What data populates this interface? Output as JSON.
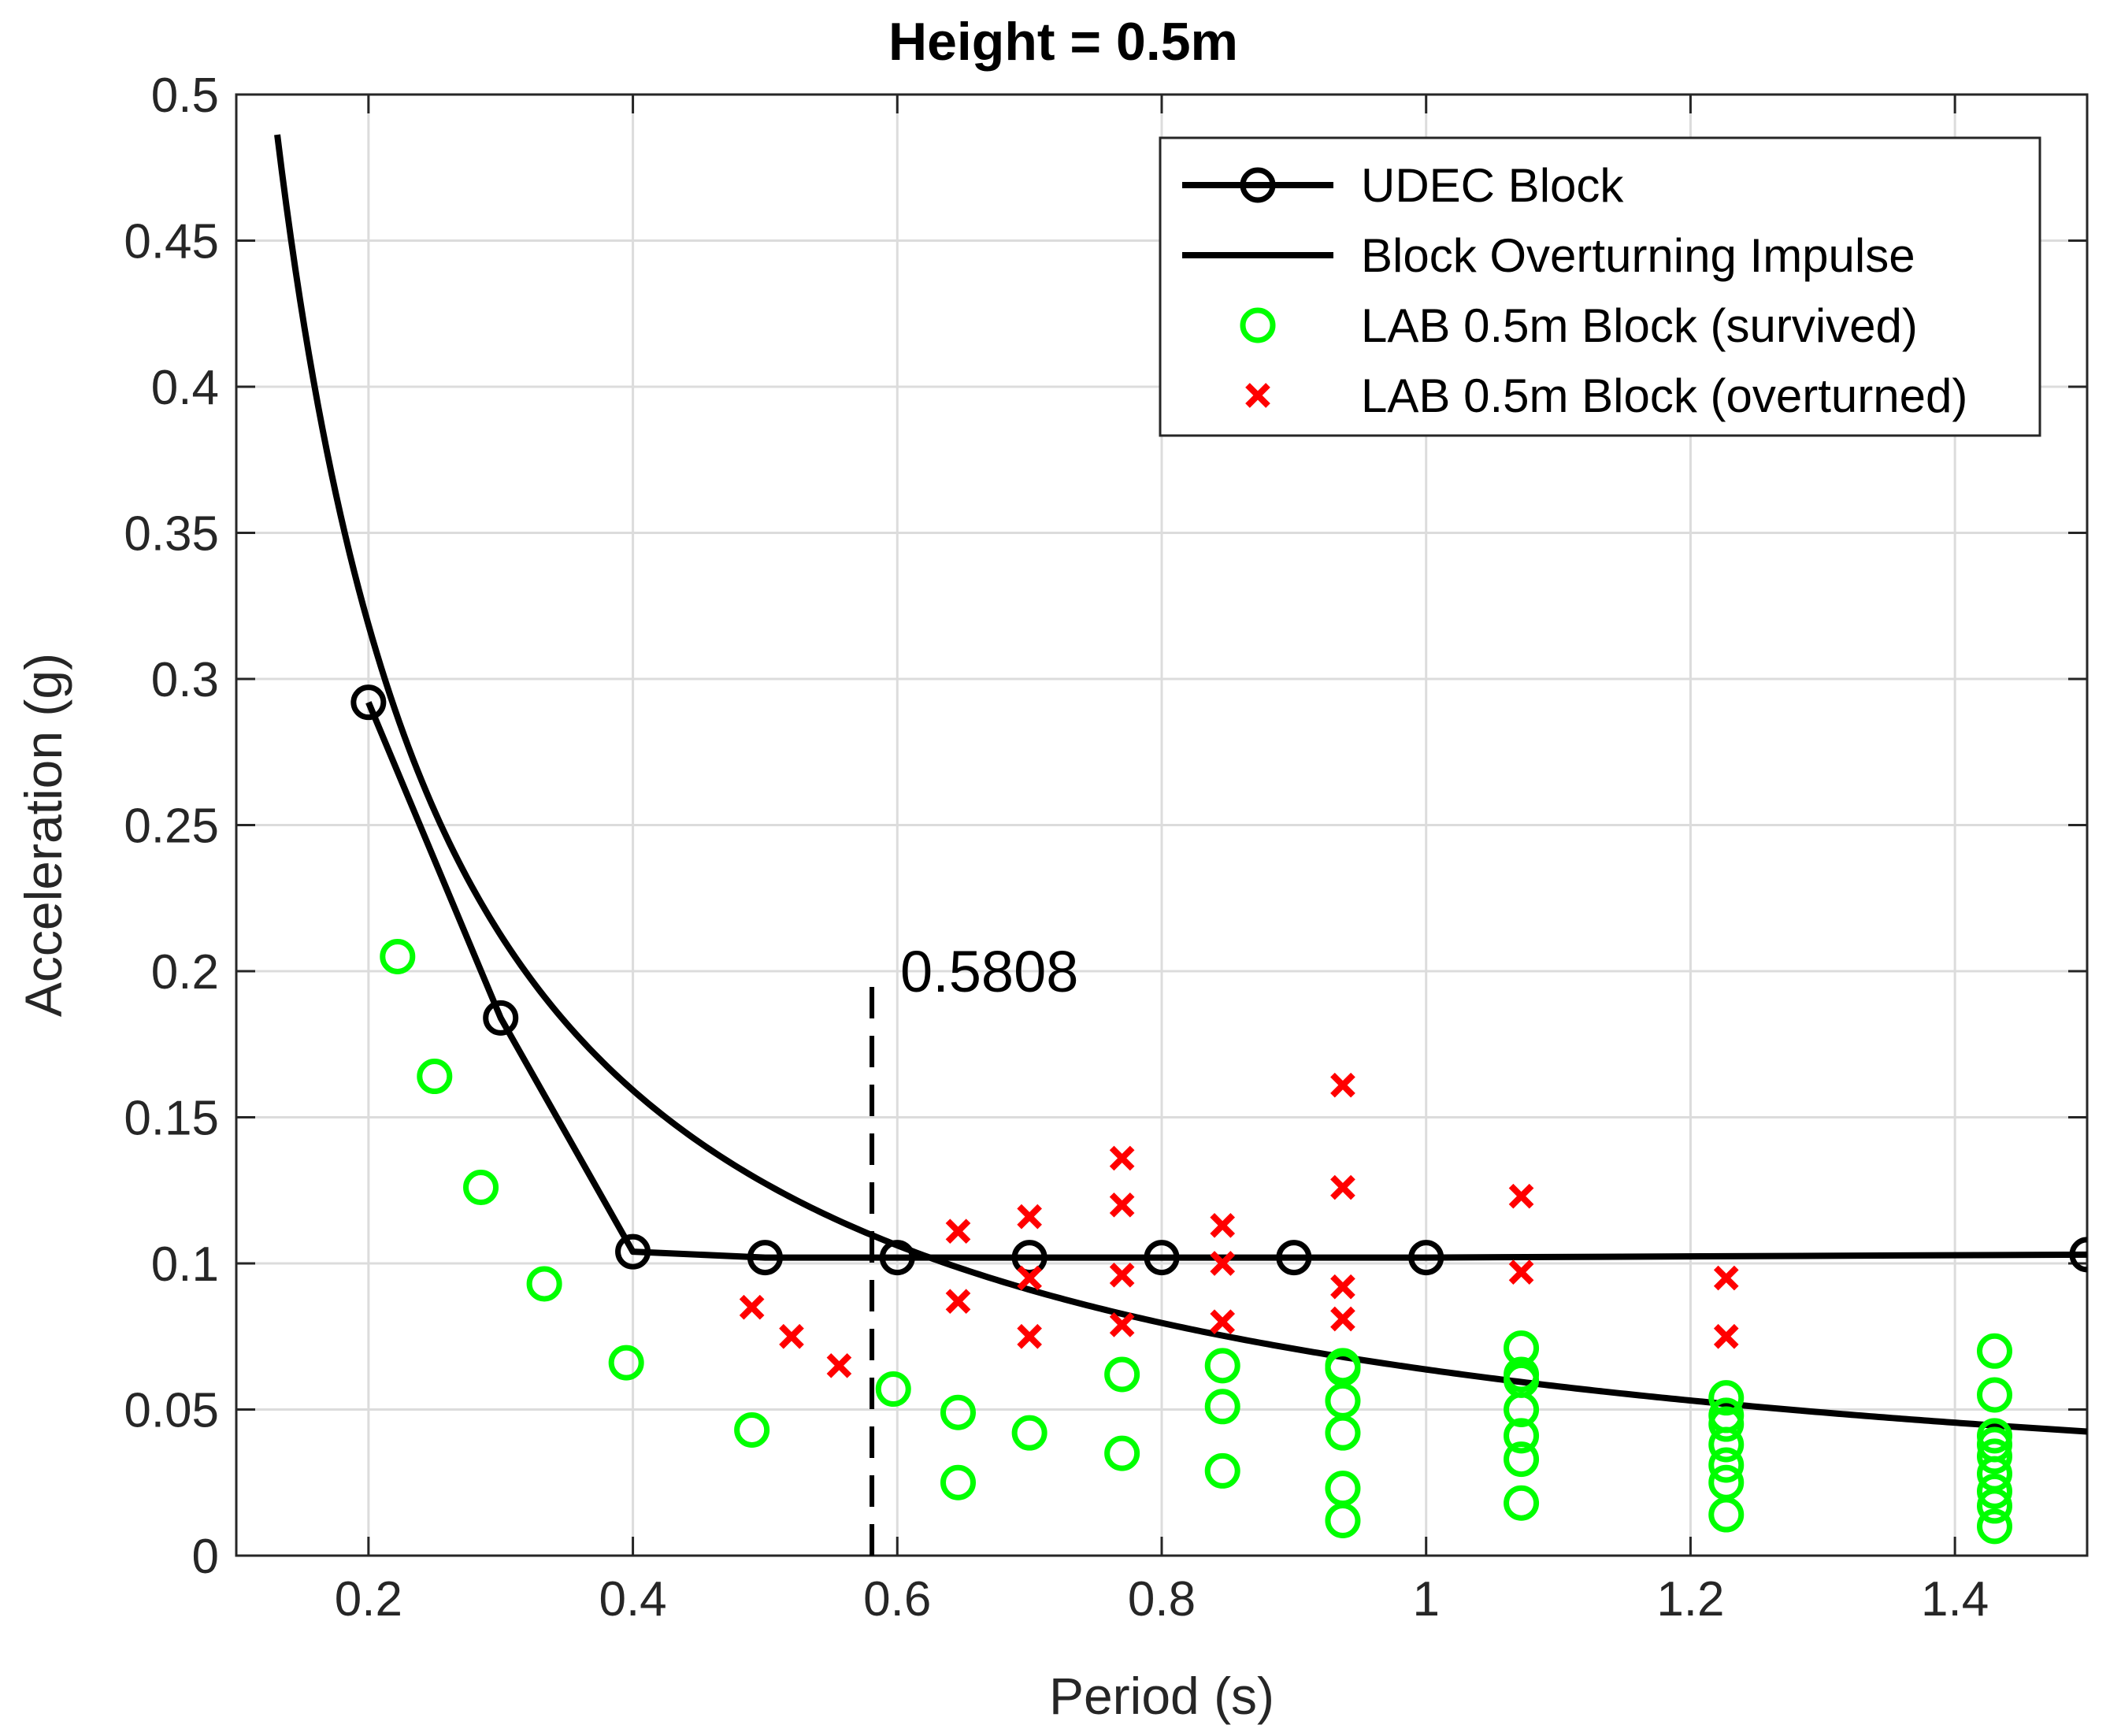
{
  "chart_data": {
    "type": "scatter",
    "title": "Height = 0.5m",
    "xlabel": "Period (s)",
    "ylabel": "Acceleration (g)",
    "xlim": [
      0.1,
      1.5
    ],
    "ylim": [
      0,
      0.5
    ],
    "grid": true,
    "legend_position": "top-right",
    "x_ticks": [
      0.2,
      0.4,
      0.6,
      0.8,
      1.0,
      1.2,
      1.4
    ],
    "x_tick_labels": [
      "0.2",
      "0.4",
      "0.6",
      "0.8",
      "1",
      "1.2",
      "1.4"
    ],
    "y_ticks": [
      0,
      0.05,
      0.1,
      0.15,
      0.2,
      0.25,
      0.3,
      0.35,
      0.4,
      0.45,
      0.5
    ],
    "y_tick_labels": [
      "0",
      "0.05",
      "0.1",
      "0.15",
      "0.2",
      "0.25",
      "0.3",
      "0.35",
      "0.4",
      "0.45",
      "0.5"
    ],
    "series": [
      {
        "name": "UDEC Block",
        "style": "line-circle",
        "color": "#000000",
        "x": [
          0.2,
          0.3,
          0.4,
          0.5,
          0.6,
          0.7,
          0.8,
          0.9,
          1.0,
          1.5
        ],
        "y": [
          0.292,
          0.184,
          0.104,
          0.102,
          0.102,
          0.102,
          0.102,
          0.102,
          0.102,
          0.103
        ]
      },
      {
        "name": "Block Overturning Impulse",
        "style": "line",
        "color": "#000000",
        "formula": "a = 0.0637 / T",
        "x": [
          0.131,
          0.15,
          0.175,
          0.2,
          0.25,
          0.3,
          0.35,
          0.4,
          0.5,
          0.6,
          0.7,
          0.8,
          0.9,
          1.0,
          1.1,
          1.2,
          1.3,
          1.4,
          1.5
        ],
        "y": [
          0.486,
          0.425,
          0.364,
          0.319,
          0.255,
          0.212,
          0.182,
          0.159,
          0.127,
          0.106,
          0.091,
          0.08,
          0.071,
          0.064,
          0.058,
          0.053,
          0.049,
          0.046,
          0.042
        ]
      },
      {
        "name": "LAB 0.5m Block (survived)",
        "style": "circle",
        "color": "#00ff00",
        "x": [
          0.222,
          0.25,
          0.285,
          0.333,
          0.395,
          0.49,
          0.597,
          0.646,
          0.646,
          0.7,
          0.77,
          0.77,
          0.846,
          0.846,
          0.846,
          0.937,
          0.937,
          0.937,
          0.937,
          0.937,
          0.937,
          1.072,
          1.072,
          1.072,
          1.072,
          1.072,
          1.072,
          1.072,
          1.227,
          1.227,
          1.227,
          1.227,
          1.227,
          1.227,
          1.227,
          1.43,
          1.43,
          1.43,
          1.43,
          1.43,
          1.43,
          1.43,
          1.43,
          1.43
        ],
        "y": [
          0.205,
          0.164,
          0.126,
          0.093,
          0.066,
          0.043,
          0.057,
          0.049,
          0.025,
          0.042,
          0.062,
          0.035,
          0.065,
          0.051,
          0.029,
          0.065,
          0.053,
          0.042,
          0.023,
          0.012,
          0.064,
          0.071,
          0.062,
          0.05,
          0.041,
          0.033,
          0.018,
          0.06,
          0.054,
          0.048,
          0.038,
          0.031,
          0.025,
          0.014,
          0.045,
          0.07,
          0.055,
          0.041,
          0.034,
          0.028,
          0.022,
          0.017,
          0.01,
          0.038
        ]
      },
      {
        "name": "LAB 0.5m Block (overturned)",
        "style": "x",
        "color": "#ff0000",
        "x": [
          0.49,
          0.52,
          0.556,
          0.646,
          0.646,
          0.7,
          0.7,
          0.7,
          0.77,
          0.77,
          0.77,
          0.77,
          0.846,
          0.846,
          0.846,
          0.937,
          0.937,
          0.937,
          0.937,
          1.072,
          1.072,
          1.227,
          1.227
        ],
        "y": [
          0.085,
          0.075,
          0.065,
          0.111,
          0.087,
          0.116,
          0.095,
          0.075,
          0.136,
          0.12,
          0.096,
          0.079,
          0.113,
          0.1,
          0.08,
          0.161,
          0.126,
          0.092,
          0.081,
          0.123,
          0.097,
          0.095,
          0.075
        ]
      }
    ],
    "annotations": [
      {
        "type": "vline-dashed",
        "x": 0.5808,
        "y_range": [
          0,
          0.2
        ],
        "label": "0.5808"
      }
    ]
  }
}
